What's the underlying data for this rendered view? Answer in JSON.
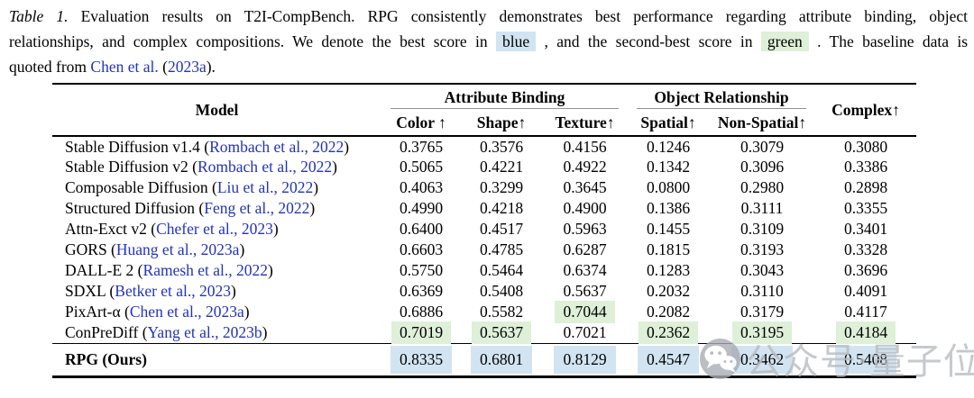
{
  "caption": {
    "lines": [
      {
        "justify_last": true,
        "parts": [
          {
            "kind": "italic",
            "text": "Table 1."
          },
          {
            "kind": "text",
            "text": " Evaluation results on T2I-CompBench. RPG consistently demonstrates best performance regarding attribute binding, object"
          }
        ]
      },
      {
        "justify_last": true,
        "parts": [
          {
            "kind": "text",
            "text": "relationships, and complex compositions. We denote the best score in "
          },
          {
            "kind": "hl_blue",
            "text": "blue"
          },
          {
            "kind": "text",
            "text": " , and the second-best score in "
          },
          {
            "kind": "hl_green",
            "text": "green"
          },
          {
            "kind": "text",
            "text": " . The baseline data is"
          }
        ]
      },
      {
        "justify_last": false,
        "parts": [
          {
            "kind": "text",
            "text": "quoted from "
          },
          {
            "kind": "link",
            "text": "Chen et al."
          },
          {
            "kind": "text",
            "text": " ("
          },
          {
            "kind": "link",
            "text": "2023a"
          },
          {
            "kind": "text",
            "text": ")."
          }
        ]
      }
    ]
  },
  "table": {
    "header": {
      "model": "Model",
      "group_attribute_binding": "Attribute Binding",
      "group_object_relationship": "Object Relationship",
      "complex": "Complex↑",
      "subcols": [
        "Color ↑",
        "Shape↑",
        "Texture↑",
        "Spatial↑",
        "Non-Spatial↑"
      ]
    },
    "rows": [
      {
        "model": "Stable Diffusion v1.4",
        "cite": "Rombach et al., 2022",
        "values": [
          {
            "v": "0.3765"
          },
          {
            "v": "0.3576"
          },
          {
            "v": "0.4156"
          },
          {
            "v": "0.1246"
          },
          {
            "v": "0.3079"
          },
          {
            "v": "0.3080"
          }
        ]
      },
      {
        "model": "Stable Diffusion v2",
        "cite": "Rombach et al., 2022",
        "values": [
          {
            "v": "0.5065"
          },
          {
            "v": "0.4221"
          },
          {
            "v": "0.4922"
          },
          {
            "v": "0.1342"
          },
          {
            "v": "0.3096"
          },
          {
            "v": "0.3386"
          }
        ]
      },
      {
        "model": "Composable Diffusion",
        "cite": "Liu et al., 2022",
        "values": [
          {
            "v": "0.4063"
          },
          {
            "v": "0.3299"
          },
          {
            "v": "0.3645"
          },
          {
            "v": "0.0800"
          },
          {
            "v": "0.2980"
          },
          {
            "v": "0.2898"
          }
        ]
      },
      {
        "model": "Structured Diffusion",
        "cite": "Feng et al., 2022",
        "values": [
          {
            "v": "0.4990"
          },
          {
            "v": "0.4218"
          },
          {
            "v": "0.4900"
          },
          {
            "v": "0.1386"
          },
          {
            "v": "0.3111"
          },
          {
            "v": "0.3355"
          }
        ]
      },
      {
        "model": "Attn-Exct v2",
        "cite": "Chefer et al., 2023",
        "values": [
          {
            "v": "0.6400"
          },
          {
            "v": "0.4517"
          },
          {
            "v": "0.5963"
          },
          {
            "v": "0.1455"
          },
          {
            "v": "0.3109"
          },
          {
            "v": "0.3401"
          }
        ]
      },
      {
        "model": "GORS",
        "cite": "Huang et al., 2023a",
        "values": [
          {
            "v": "0.6603"
          },
          {
            "v": "0.4785"
          },
          {
            "v": "0.6287"
          },
          {
            "v": "0.1815"
          },
          {
            "v": "0.3193"
          },
          {
            "v": "0.3328"
          }
        ]
      },
      {
        "model": "DALL-E 2",
        "cite": "Ramesh et al., 2022",
        "values": [
          {
            "v": "0.5750"
          },
          {
            "v": "0.5464"
          },
          {
            "v": "0.6374"
          },
          {
            "v": "0.1283"
          },
          {
            "v": "0.3043"
          },
          {
            "v": "0.3696"
          }
        ]
      },
      {
        "model": "SDXL",
        "cite": "Betker et al., 2023",
        "values": [
          {
            "v": "0.6369"
          },
          {
            "v": "0.5408"
          },
          {
            "v": "0.5637"
          },
          {
            "v": "0.2032"
          },
          {
            "v": "0.3110"
          },
          {
            "v": "0.4091"
          }
        ]
      },
      {
        "model": "PixArt-α",
        "cite": "Chen et al., 2023a",
        "values": [
          {
            "v": "0.6886"
          },
          {
            "v": "0.5582"
          },
          {
            "v": "0.7044",
            "hl": "green"
          },
          {
            "v": "0.2082"
          },
          {
            "v": "0.3179"
          },
          {
            "v": "0.4117"
          }
        ]
      },
      {
        "model": "ConPreDiff",
        "cite": "Yang et al., 2023b",
        "values": [
          {
            "v": "0.7019",
            "hl": "green"
          },
          {
            "v": "0.5637",
            "hl": "green"
          },
          {
            "v": "0.7021"
          },
          {
            "v": "0.2362",
            "hl": "green"
          },
          {
            "v": "0.3195",
            "hl": "green"
          },
          {
            "v": "0.4184",
            "hl": "green"
          }
        ]
      }
    ],
    "final_row": {
      "model": "RPG (Ours)",
      "values": [
        {
          "v": "0.8335",
          "hl": "blue"
        },
        {
          "v": "0.6801",
          "hl": "blue"
        },
        {
          "v": "0.8129",
          "hl": "blue"
        },
        {
          "v": "0.4547",
          "hl": "blue"
        },
        {
          "v": "0.3462",
          "hl": "blue"
        },
        {
          "v": "0.5408",
          "hl": "blue"
        }
      ]
    }
  },
  "watermark": {
    "text": "公众号·量子位"
  },
  "colors": {
    "highlight_blue": "#d2e4f2",
    "highlight_green": "#def0d8",
    "link_blue": "#2233bb"
  }
}
